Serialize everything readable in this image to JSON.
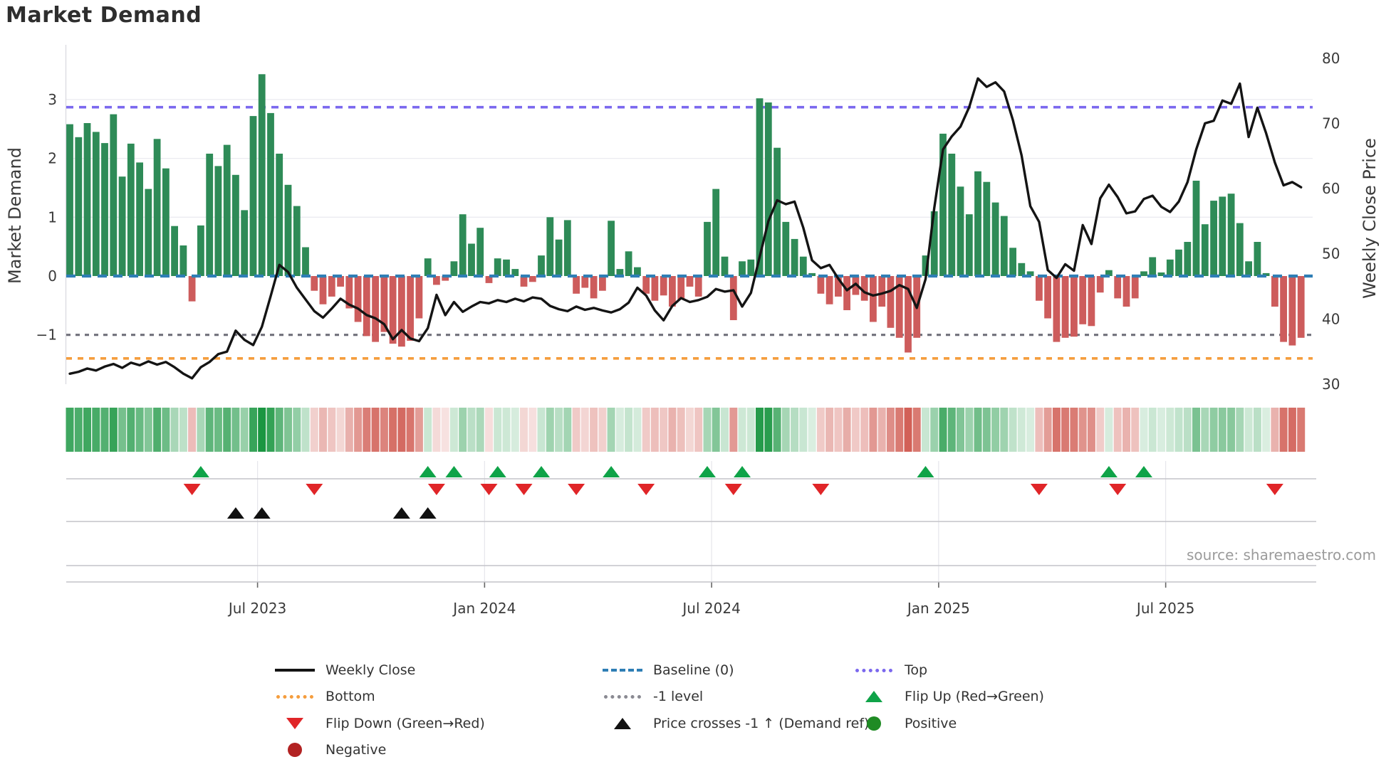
{
  "title": "Market Demand",
  "source": "source: sharemaestro.com",
  "axes": {
    "left_label": "Market Demand",
    "right_label": "Weekly Close Price"
  },
  "legend": {
    "weekly_close": "Weekly Close",
    "baseline": "Baseline (0)",
    "top": "Top",
    "bottom": "Bottom",
    "minus1": "-1 level",
    "flip_up": "Flip Up (Red→Green)",
    "flip_down": "Flip Down (Green→Red)",
    "price_cross": "Price crosses -1 ↑ (Demand ref)",
    "positive": "Positive",
    "negative": "Negative"
  },
  "chart_data": {
    "type": "bar+line combo with heatmap strip and signal markers",
    "title": "Market Demand",
    "ylabel_left": "Market Demand",
    "ylabel_right": "Weekly Close Price",
    "n_weeks": 142,
    "x_tick_labels": [
      "Jul 2023",
      "Jan 2024",
      "Jul 2024",
      "Jan 2025",
      "Jul 2025"
    ],
    "x_tick_index": [
      21.5,
      47.5,
      73.5,
      99.5,
      125.5
    ],
    "y_left": {
      "tick_labels": [
        "3",
        "2",
        "1",
        "0",
        "−1"
      ],
      "tick_values": [
        3,
        2,
        1,
        0,
        -1
      ],
      "range": [
        -1.84,
        3.93
      ]
    },
    "y_right": {
      "tick_labels": [
        "80",
        "70",
        "60",
        "50",
        "40",
        "30"
      ],
      "tick_values": [
        80,
        70,
        60,
        50,
        40,
        30
      ],
      "range": [
        30,
        82
      ]
    },
    "levels": {
      "baseline": 0,
      "top": 2.87,
      "minus1": -1,
      "bottom": -1.4
    },
    "demand_bars": [
      2.58,
      2.36,
      2.6,
      2.45,
      2.26,
      2.75,
      1.69,
      2.25,
      1.93,
      1.48,
      2.33,
      1.83,
      0.85,
      0.52,
      -0.43,
      0.86,
      2.08,
      1.87,
      2.23,
      1.72,
      1.12,
      2.72,
      3.43,
      2.77,
      2.08,
      1.55,
      1.19,
      0.49,
      -0.25,
      -0.48,
      -0.35,
      -0.18,
      -0.55,
      -0.78,
      -1.02,
      -1.12,
      -0.95,
      -1.15,
      -1.2,
      -1.1,
      -0.72,
      0.3,
      -0.15,
      -0.08,
      0.25,
      1.05,
      0.55,
      0.82,
      -0.12,
      0.3,
      0.28,
      0.12,
      -0.18,
      -0.1,
      0.35,
      1.0,
      0.62,
      0.95,
      -0.3,
      -0.2,
      -0.38,
      -0.25,
      0.94,
      0.12,
      0.42,
      0.15,
      -0.3,
      -0.42,
      -0.33,
      -0.52,
      -0.4,
      -0.18,
      -0.35,
      0.92,
      1.48,
      0.33,
      -0.75,
      0.25,
      0.28,
      3.02,
      2.95,
      2.18,
      0.92,
      0.63,
      0.33,
      0.05,
      -0.3,
      -0.48,
      -0.35,
      -0.58,
      -0.32,
      -0.42,
      -0.78,
      -0.52,
      -0.88,
      -1.05,
      -1.3,
      -1.05,
      0.35,
      1.1,
      2.42,
      2.08,
      1.52,
      1.05,
      1.78,
      1.6,
      1.25,
      1.02,
      0.48,
      0.22,
      0.08,
      -0.42,
      -0.72,
      -1.12,
      -1.05,
      -1.03,
      -0.82,
      -0.85,
      -0.28,
      0.1,
      -0.38,
      -0.52,
      -0.38,
      0.08,
      0.32,
      0.06,
      0.28,
      0.45,
      0.58,
      1.62,
      0.88,
      1.28,
      1.35,
      1.4,
      0.9,
      0.25,
      0.58,
      0.05,
      -0.52,
      -1.12,
      -1.18,
      -1.05
    ],
    "price_line": [
      31.6,
      31.9,
      32.4,
      32.1,
      32.7,
      33.1,
      32.5,
      33.3,
      32.9,
      33.5,
      33.0,
      33.4,
      32.6,
      31.6,
      30.9,
      32.6,
      33.4,
      34.6,
      35.0,
      38.2,
      36.8,
      36.0,
      38.8,
      43.5,
      48.3,
      47.2,
      44.8,
      43.0,
      41.2,
      40.2,
      41.6,
      43.1,
      42.2,
      41.6,
      40.6,
      40.1,
      39.2,
      36.9,
      38.3,
      37.0,
      36.6,
      38.6,
      43.7,
      40.6,
      42.6,
      41.1,
      41.9,
      42.6,
      42.4,
      42.9,
      42.6,
      43.1,
      42.7,
      43.3,
      43.1,
      42.0,
      41.5,
      41.2,
      41.9,
      41.4,
      41.7,
      41.3,
      41.0,
      41.5,
      42.5,
      44.8,
      43.6,
      41.3,
      39.8,
      42.0,
      43.2,
      42.6,
      42.9,
      43.4,
      44.6,
      44.2,
      44.4,
      41.9,
      44.0,
      49.5,
      55.0,
      58.2,
      57.6,
      58.0,
      54.0,
      49.0,
      47.8,
      48.3,
      46.2,
      44.4,
      45.4,
      44.1,
      43.6,
      43.9,
      44.3,
      45.2,
      44.6,
      41.7,
      46.1,
      57.0,
      66.0,
      68.0,
      69.5,
      72.5,
      76.9,
      75.6,
      76.3,
      74.9,
      70.5,
      65.1,
      57.3,
      54.9,
      47.5,
      46.3,
      48.4,
      47.4,
      54.4,
      51.5,
      58.5,
      60.6,
      58.7,
      56.2,
      56.5,
      58.4,
      58.9,
      57.2,
      56.4,
      58.0,
      61.0,
      66.0,
      70.0,
      70.4,
      73.5,
      73.0,
      76.1,
      67.9,
      72.4,
      68.5,
      64.0,
      60.5,
      61.0,
      60.2
    ],
    "flip_up_index": [
      15,
      41,
      44,
      49,
      54,
      62,
      73,
      77,
      98,
      119,
      123
    ],
    "flip_down_index": [
      14,
      28,
      42,
      48,
      52,
      58,
      66,
      76,
      86,
      111,
      120,
      138
    ],
    "price_cross_index": [
      19,
      22,
      38,
      41
    ],
    "heatmap_note": "strip cells mirror demand_bars sign and intensity",
    "legend_position": "bottom, three columns",
    "grid": "horizontal light gridlines at demand 1,2,3",
    "colors": {
      "bar_positive": "#2E8B57",
      "bar_negative": "#CD5C5C",
      "price_line": "#141414",
      "baseline_dash": "#2e7eb5",
      "top_dash": "#7b68ee",
      "minus1_dash": "#70707a",
      "bottom_dash": "#f59d3d",
      "flip_up_marker": "#0fa348",
      "flip_down_marker": "#e02528",
      "price_cross_marker": "#111111",
      "positive_dot": "#1f8b24",
      "negative_dot": "#b22222",
      "heat_positive_rgb": "26,150,65",
      "heat_negative_rgb": "205,80,70",
      "gridline": "#ebebf0",
      "panel_line": "#c4c4c9",
      "tick_text": "#3a3a3a",
      "source_text": "#9b9b9b"
    }
  }
}
